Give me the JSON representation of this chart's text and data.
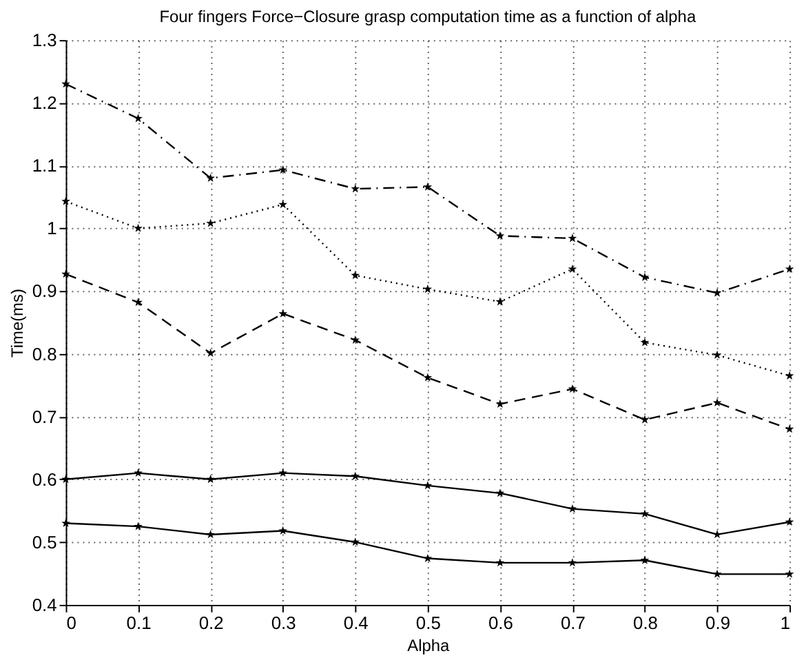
{
  "chart_data": {
    "type": "line",
    "title": "Four fingers Force−Closure grasp computation time as a function of alpha",
    "xlabel": "Alpha",
    "ylabel": "Time(ms)",
    "x": [
      0,
      0.1,
      0.2,
      0.3,
      0.4,
      0.5,
      0.6,
      0.7,
      0.8,
      0.9,
      1
    ],
    "series": [
      {
        "color": "#000000",
        "line_style": "dashdot",
        "values": [
          1.23,
          1.175,
          1.08,
          1.093,
          1.063,
          1.066,
          0.988,
          0.984,
          0.922,
          0.897,
          0.935
        ]
      },
      {
        "color": "#000000",
        "line_style": "dotted",
        "values": [
          1.043,
          1.0,
          1.008,
          1.038,
          0.925,
          0.903,
          0.883,
          0.935,
          0.818,
          0.798,
          0.765
        ]
      },
      {
        "color": "#000000",
        "line_style": "dashed",
        "values": [
          0.927,
          0.882,
          0.801,
          0.864,
          0.822,
          0.762,
          0.72,
          0.744,
          0.695,
          0.722,
          0.68
        ]
      },
      {
        "color": "#000000",
        "line_style": "solid",
        "values": [
          0.6,
          0.61,
          0.6,
          0.61,
          0.605,
          0.59,
          0.578,
          0.553,
          0.545,
          0.512,
          0.532
        ]
      },
      {
        "color": "#000000",
        "line_style": "solid",
        "values": [
          0.53,
          0.525,
          0.512,
          0.518,
          0.5,
          0.474,
          0.467,
          0.467,
          0.471,
          0.449,
          0.449
        ]
      }
    ],
    "xlim": [
      0,
      1
    ],
    "xticks": [
      0,
      0.1,
      0.2,
      0.3,
      0.4,
      0.5,
      0.6,
      0.7,
      0.8,
      0.9,
      1
    ],
    "ylim": [
      0.4,
      1.3
    ],
    "yticks": [
      0.4,
      0.5,
      0.6,
      0.7,
      0.8,
      0.9,
      1,
      1.1,
      1.2,
      1.3
    ],
    "grid": true,
    "marker": "star",
    "legend": false
  }
}
